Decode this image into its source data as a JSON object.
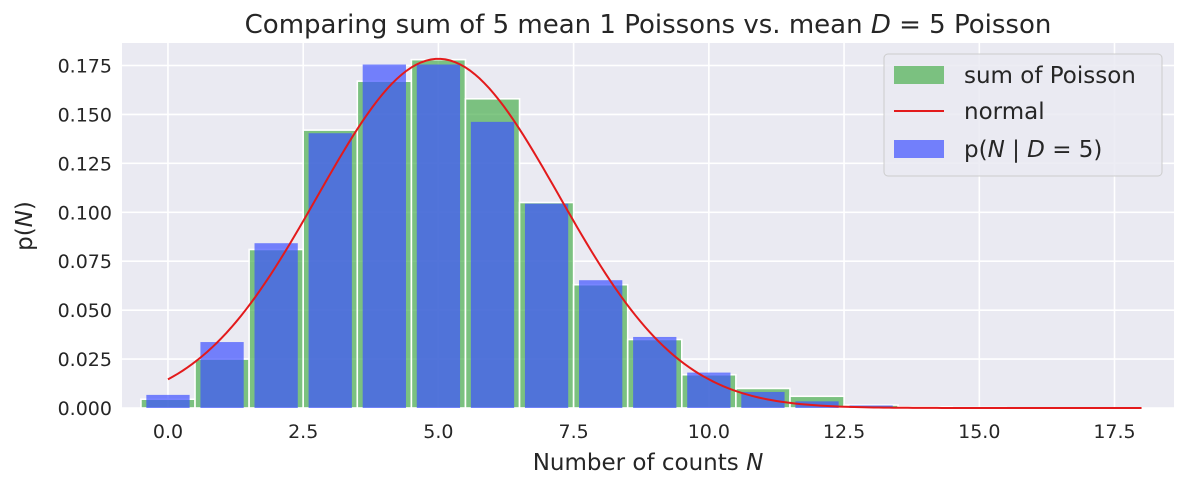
{
  "chart_data": {
    "type": "bar",
    "title": "Comparing sum of 5 mean 1 Poissons vs. mean D = 5 Poisson",
    "xlabel": "Number of counts N",
    "ylabel": "p(N)",
    "xlim": [
      -0.85,
      18.6
    ],
    "ylim": [
      0,
      0.1865
    ],
    "xticks": [
      0.0,
      2.5,
      5.0,
      7.5,
      10.0,
      12.5,
      15.0,
      17.5
    ],
    "xtick_labels": [
      "0.0",
      "2.5",
      "5.0",
      "7.5",
      "10.0",
      "12.5",
      "15.0",
      "17.5"
    ],
    "yticks": [
      0.0,
      0.025,
      0.05,
      0.075,
      0.1,
      0.125,
      0.15,
      0.175
    ],
    "ytick_labels": [
      "0.000",
      "0.025",
      "0.050",
      "0.075",
      "0.100",
      "0.125",
      "0.150",
      "0.175"
    ],
    "grid": true,
    "legend_position": "top-right",
    "series": [
      {
        "name": "sum of Poisson",
        "kind": "bar",
        "color": "#4caf50",
        "bar_left": [
          -0.5,
          0.5,
          1.5,
          2.5,
          3.5,
          4.5,
          5.5,
          6.5,
          7.5,
          8.5,
          9.5,
          10.5,
          11.5,
          12.5,
          13.5,
          14.5,
          15.5,
          16.5,
          17.5
        ],
        "bar_right": [
          0.5,
          1.5,
          2.5,
          3.5,
          4.5,
          5.5,
          6.5,
          7.5,
          8.5,
          9.5,
          10.5,
          11.5,
          12.5,
          13.5,
          14.5,
          15.5,
          16.5,
          17.5,
          18.0
        ],
        "values": [
          0.0045,
          0.025,
          0.081,
          0.142,
          0.167,
          0.178,
          0.158,
          0.105,
          0.063,
          0.035,
          0.017,
          0.01,
          0.006,
          0.0015,
          0.0006,
          0.0003,
          0.0001,
          0.0001,
          0.0001
        ]
      },
      {
        "name": "normal",
        "kind": "line",
        "color": "#e31a1c",
        "mean": 5.0,
        "std": 2.236,
        "x_range": [
          0.0,
          18.0
        ]
      },
      {
        "name": "p(N | D = 5)",
        "kind": "bar",
        "color": "#3f51ff",
        "x": [
          0,
          1,
          2,
          3,
          4,
          5,
          6,
          7,
          8,
          9,
          10,
          11,
          12,
          13
        ],
        "width": 0.8,
        "values": [
          0.0067,
          0.0337,
          0.0842,
          0.1404,
          0.1755,
          0.1755,
          0.1462,
          0.1044,
          0.0653,
          0.0363,
          0.0181,
          0.0082,
          0.0034,
          0.0013
        ]
      }
    ]
  }
}
